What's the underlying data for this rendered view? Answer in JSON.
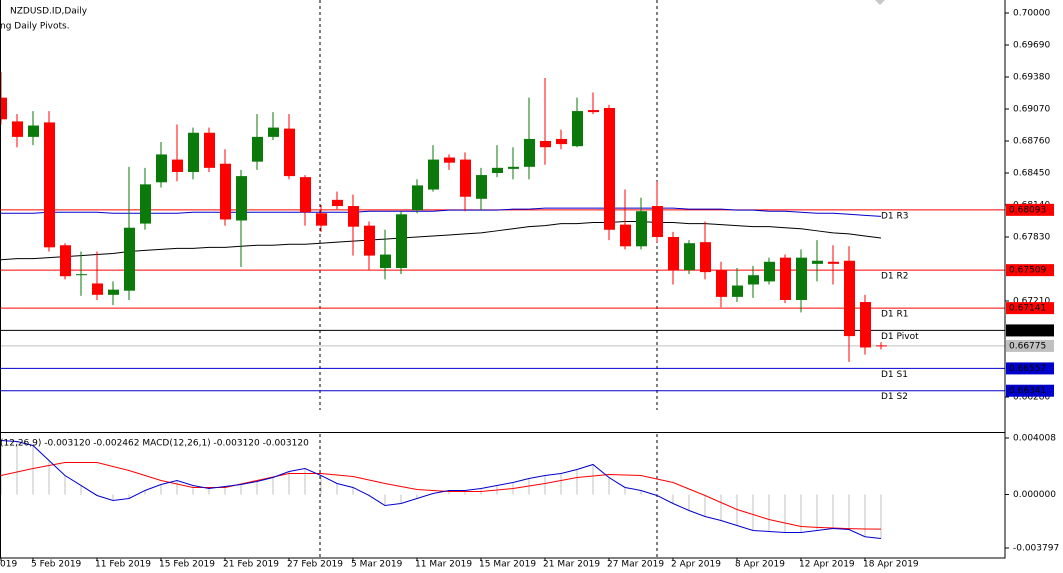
{
  "chart_data": [
    {
      "type": "candlestick",
      "title": "NZDUSD.ID,Daily",
      "subtitle": "ng Daily Pivots.",
      "categories": [
        "019",
        null,
        "5 Feb 2019",
        null,
        null,
        null,
        "11 Feb 2019",
        null,
        null,
        null,
        "15 Feb 2019",
        null,
        null,
        null,
        "21 Feb 2019",
        null,
        null,
        null,
        "27 Feb 2019",
        null,
        null,
        null,
        "5 Mar 2019",
        null,
        null,
        null,
        "11 Mar 2019",
        null,
        null,
        null,
        "15 Mar 2019",
        null,
        null,
        null,
        "21 Mar 2019",
        null,
        null,
        null,
        "27 Mar 2019",
        null,
        null,
        null,
        "2 Apr 2019",
        null,
        null,
        null,
        "8 Apr 2019",
        null,
        null,
        null,
        "12 Apr 2019",
        null,
        null,
        null,
        "18 Apr 2019",
        null
      ],
      "open": [
        0.6918,
        0.6895,
        0.688,
        0.6894,
        0.6775,
        0.6746,
        0.6738,
        0.6727,
        0.6731,
        0.6796,
        0.6836,
        0.6858,
        0.6846,
        0.6884,
        0.6854,
        0.6799,
        0.6856,
        0.688,
        0.6888,
        0.6841,
        0.6806,
        0.6819,
        0.6813,
        0.6794,
        0.6753,
        0.6753,
        0.6809,
        0.6829,
        0.686,
        0.6858,
        0.682,
        0.6845,
        0.6849,
        0.6851,
        0.6876,
        0.6878,
        0.6871,
        0.6906,
        0.6908,
        0.6795,
        0.6774,
        0.6813,
        0.6783,
        0.6751,
        0.6778,
        0.6751,
        0.6725,
        0.6737,
        0.674,
        0.6763,
        0.6722,
        0.6757,
        0.6759,
        0.676,
        0.672,
        0.6678
      ],
      "high": [
        0.6943,
        0.6902,
        0.6905,
        0.6905,
        0.6777,
        0.6769,
        0.6769,
        0.674,
        0.6851,
        0.685,
        0.6875,
        0.6892,
        0.6889,
        0.6889,
        0.6868,
        0.6848,
        0.6902,
        0.6904,
        0.6902,
        0.6843,
        0.6814,
        0.6827,
        0.6824,
        0.6798,
        0.679,
        0.6808,
        0.6839,
        0.6872,
        0.6863,
        0.6865,
        0.685,
        0.6872,
        0.687,
        0.6918,
        0.6937,
        0.6887,
        0.6918,
        0.6923,
        0.6911,
        0.6829,
        0.6821,
        0.6837,
        0.6788,
        0.678,
        0.6798,
        0.6759,
        0.6753,
        0.6755,
        0.6763,
        0.6766,
        0.6771,
        0.678,
        0.6775,
        0.6774,
        0.6727,
        0.6681
      ],
      "low": [
        0.6892,
        0.687,
        0.6872,
        0.6769,
        0.6742,
        0.6726,
        0.6722,
        0.6717,
        0.6722,
        0.679,
        0.6831,
        0.6837,
        0.6839,
        0.6846,
        0.6794,
        0.6754,
        0.6848,
        0.6877,
        0.6839,
        0.6794,
        0.6788,
        0.681,
        0.6765,
        0.6751,
        0.6742,
        0.6747,
        0.6806,
        0.6827,
        0.6848,
        0.6808,
        0.6809,
        0.6841,
        0.6839,
        0.6839,
        0.6853,
        0.6868,
        0.687,
        0.6902,
        0.678,
        0.6771,
        0.6771,
        0.6778,
        0.6737,
        0.6747,
        0.6742,
        0.6715,
        0.672,
        0.6724,
        0.6737,
        0.6719,
        0.671,
        0.674,
        0.6737,
        0.6662,
        0.6669,
        0.6674
      ],
      "close": [
        0.6897,
        0.688,
        0.6891,
        0.6773,
        0.6745,
        0.6747,
        0.6727,
        0.6732,
        0.6792,
        0.6834,
        0.6863,
        0.6846,
        0.6884,
        0.685,
        0.68,
        0.6842,
        0.688,
        0.6889,
        0.6842,
        0.6807,
        0.6794,
        0.6813,
        0.6793,
        0.6765,
        0.6766,
        0.6805,
        0.6833,
        0.6858,
        0.6855,
        0.6822,
        0.6843,
        0.685,
        0.6851,
        0.6878,
        0.687,
        0.6873,
        0.6905,
        0.6904,
        0.679,
        0.6774,
        0.6808,
        0.6783,
        0.6751,
        0.6777,
        0.6749,
        0.6725,
        0.6736,
        0.6746,
        0.6759,
        0.6722,
        0.6763,
        0.676,
        0.6757,
        0.6687,
        0.6676,
        0.66775
      ],
      "up_color": "#0a7a0a",
      "down_color": "#ff0000",
      "bid_color": "#c0c0c0",
      "lines": [
        {
          "color": "#0000cd",
          "values": [
            0.6806,
            0.6806,
            0.6806,
            0.6807,
            0.6807,
            0.6807,
            0.6807,
            0.6806,
            0.6806,
            0.6806,
            0.6806,
            0.6806,
            0.6807,
            0.6807,
            0.6807,
            0.6807,
            0.6807,
            0.6807,
            0.6807,
            0.6807,
            0.6807,
            0.6807,
            0.6807,
            0.6808,
            0.6808,
            0.6808,
            0.6808,
            0.6808,
            0.6809,
            0.6809,
            0.6809,
            0.6809,
            0.681,
            0.681,
            0.6811,
            0.6811,
            0.6811,
            0.6811,
            0.6811,
            0.6811,
            0.6811,
            0.6811,
            0.6811,
            0.681,
            0.681,
            0.681,
            0.6809,
            0.6809,
            0.6808,
            0.6808,
            0.6807,
            0.6806,
            0.6806,
            0.6805,
            0.6804,
            0.6803
          ]
        },
        {
          "color": "#000000",
          "values": [
            0.6761,
            0.6762,
            0.6762,
            0.6763,
            0.6764,
            0.6765,
            0.6766,
            0.6767,
            0.6769,
            0.677,
            0.6771,
            0.6772,
            0.6772,
            0.6773,
            0.6773,
            0.6774,
            0.6775,
            0.6775,
            0.6776,
            0.6776,
            0.6777,
            0.6778,
            0.6779,
            0.678,
            0.6781,
            0.6782,
            0.6783,
            0.6784,
            0.6785,
            0.6786,
            0.6787,
            0.6789,
            0.6791,
            0.6793,
            0.6794,
            0.6796,
            0.6796,
            0.6797,
            0.6797,
            0.6798,
            0.6798,
            0.6797,
            0.6797,
            0.6796,
            0.6796,
            0.6795,
            0.6794,
            0.6793,
            0.6793,
            0.6792,
            0.6791,
            0.6789,
            0.6787,
            0.6786,
            0.6784,
            0.6782
          ]
        }
      ],
      "levels": [
        {
          "label": "D1 R3",
          "value": 0.68093,
          "color": "#ff0000"
        },
        {
          "label": "D1 R2",
          "value": 0.67509,
          "color": "#ff0000"
        },
        {
          "label": "D1 R1",
          "value": 0.67141,
          "color": "#ff0000"
        },
        {
          "label": "D1 Pivot",
          "value": 0.66925,
          "color": "#000000"
        },
        {
          "label": "D1 S1",
          "value": 0.66557,
          "color": "#0000cd"
        },
        {
          "label": "D1 S2",
          "value": 0.66341,
          "color": "#0000cd"
        }
      ],
      "ylim": [
        0.65941,
        0.70126
      ],
      "yticks": [
        {
          "value": 0.7,
          "label": "0.70000"
        },
        {
          "value": 0.6969,
          "label": "0.69690"
        },
        {
          "value": 0.6938,
          "label": "0.69380"
        },
        {
          "value": 0.6907,
          "label": "0.69070"
        },
        {
          "value": 0.6876,
          "label": "0.68760"
        },
        {
          "value": 0.6845,
          "label": "0.68450"
        },
        {
          "value": 0.6814,
          "label": "0.68140"
        },
        {
          "value": 0.6783,
          "label": "0.67830"
        },
        {
          "value": 0.6721,
          "label": "0.67210"
        },
        {
          "value": 0.6628,
          "label": "0.66280"
        }
      ]
    },
    {
      "type": "macd",
      "title": "(12,26,9) -0.003120 -0.002462 MACD(12,26,1) -0.003120 -0.003120",
      "values": [
        0.003832,
        0.003761,
        0.003477,
        0.002413,
        0.001348,
        0.000639,
        -7.1e-05,
        -0.000426,
        -0.000284,
        0.000284,
        0.00071,
        0.000993,
        0.000639,
        0.000426,
        0.000568,
        0.00071,
        0.000922,
        0.001206,
        0.001632,
        0.001845,
        0.001348,
        0.000781,
        0.000497,
        -7.1e-05,
        -0.000781,
        -0.000639,
        -0.000284,
        7.1e-05,
        0.000284,
        0.000284,
        0.000426,
        0.000639,
        0.000852,
        0.001135,
        0.001348,
        0.00149,
        0.001774,
        0.002129,
        0.001206,
        0.000497,
        0.000284,
        -7.1e-05,
        -0.000639,
        -0.001135,
        -0.001561,
        -0.001845,
        -0.0022,
        -0.002555,
        -0.002626,
        -0.002696,
        -0.002696,
        -0.002555,
        -0.002413,
        -0.002484,
        -0.003,
        -0.00312
      ],
      "signal": [
        0.001348,
        0.001597,
        0.001845,
        0.002058,
        0.002271,
        0.002271,
        0.002271,
        0.001987,
        0.001703,
        0.001348,
        0.000993,
        0.000745,
        0.000497,
        0.000497,
        0.000497,
        0.000745,
        0.000993,
        0.001242,
        0.00149,
        0.00149,
        0.00149,
        0.001384,
        0.001277,
        0.001029,
        0.000781,
        0.000568,
        0.000355,
        0.000284,
        0.000213,
        0.000213,
        0.000213,
        0.00032,
        0.000426,
        0.000604,
        0.000781,
        0.000994,
        0.001206,
        0.001313,
        0.001419,
        0.001384,
        0.001348,
        0.0011,
        0.000852,
        0.000391,
        -7.1e-05,
        -0.000568,
        -0.001064,
        -0.001419,
        -0.001774,
        -0.002023,
        -0.002271,
        -0.00233,
        -0.00238,
        -0.00242,
        -0.002445,
        -0.002462
      ],
      "bar_color": "#c0c0c0",
      "line_color": "#0000cd",
      "signal_color": "#ff0000",
      "ylim": [
        -0.004507,
        0.004363
      ],
      "yticks": [
        0.004008,
        {
          "value": 0,
          "label": "0.000000"
        },
        -0.003797
      ]
    }
  ]
}
